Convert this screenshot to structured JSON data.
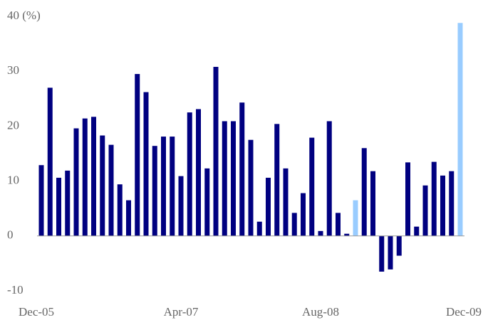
{
  "chart_data": {
    "type": "bar",
    "categories": [
      "Dec-05",
      null,
      null,
      null,
      null,
      null,
      null,
      null,
      null,
      null,
      null,
      null,
      null,
      null,
      null,
      null,
      "Apr-07",
      null,
      null,
      null,
      null,
      null,
      null,
      null,
      null,
      null,
      null,
      null,
      null,
      null,
      null,
      null,
      "Aug-08",
      null,
      null,
      null,
      null,
      null,
      null,
      null,
      null,
      null,
      null,
      null,
      null,
      null,
      null,
      null,
      "Dec-09"
    ],
    "values": [
      12.9,
      27.0,
      10.6,
      11.9,
      19.6,
      21.4,
      21.7,
      18.3,
      16.6,
      9.4,
      6.5,
      29.5,
      26.2,
      16.4,
      18.1,
      18.1,
      10.9,
      22.5,
      23.1,
      12.3,
      30.8,
      20.9,
      20.9,
      24.3,
      17.5,
      2.6,
      10.6,
      20.4,
      12.3,
      4.2,
      7.8,
      17.9,
      0.9,
      20.9,
      4.2,
      0.4,
      6.5,
      16.0,
      11.8,
      -6.5,
      -6.1,
      -3.6,
      13.4,
      1.7,
      9.2,
      13.5,
      11.0,
      11.8,
      38.8
    ],
    "colors": [
      "#000080",
      "#000080",
      "#000080",
      "#000080",
      "#000080",
      "#000080",
      "#000080",
      "#000080",
      "#000080",
      "#000080",
      "#000080",
      "#000080",
      "#000080",
      "#000080",
      "#000080",
      "#000080",
      "#000080",
      "#000080",
      "#000080",
      "#000080",
      "#000080",
      "#000080",
      "#000080",
      "#000080",
      "#000080",
      "#000080",
      "#000080",
      "#000080",
      "#000080",
      "#000080",
      "#000080",
      "#000080",
      "#000080",
      "#000080",
      "#000080",
      "#000080",
      "#99ccff",
      "#000080",
      "#000080",
      "#000080",
      "#000080",
      "#000080",
      "#000080",
      "#000080",
      "#000080",
      "#000080",
      "#000080",
      "#000080",
      "#99ccff"
    ],
    "ylim": [
      -10,
      40
    ],
    "yticks": [
      -10,
      0,
      10,
      20,
      30,
      {
        "value": 40,
        "label": "40 (%)"
      }
    ],
    "grid": false
  }
}
